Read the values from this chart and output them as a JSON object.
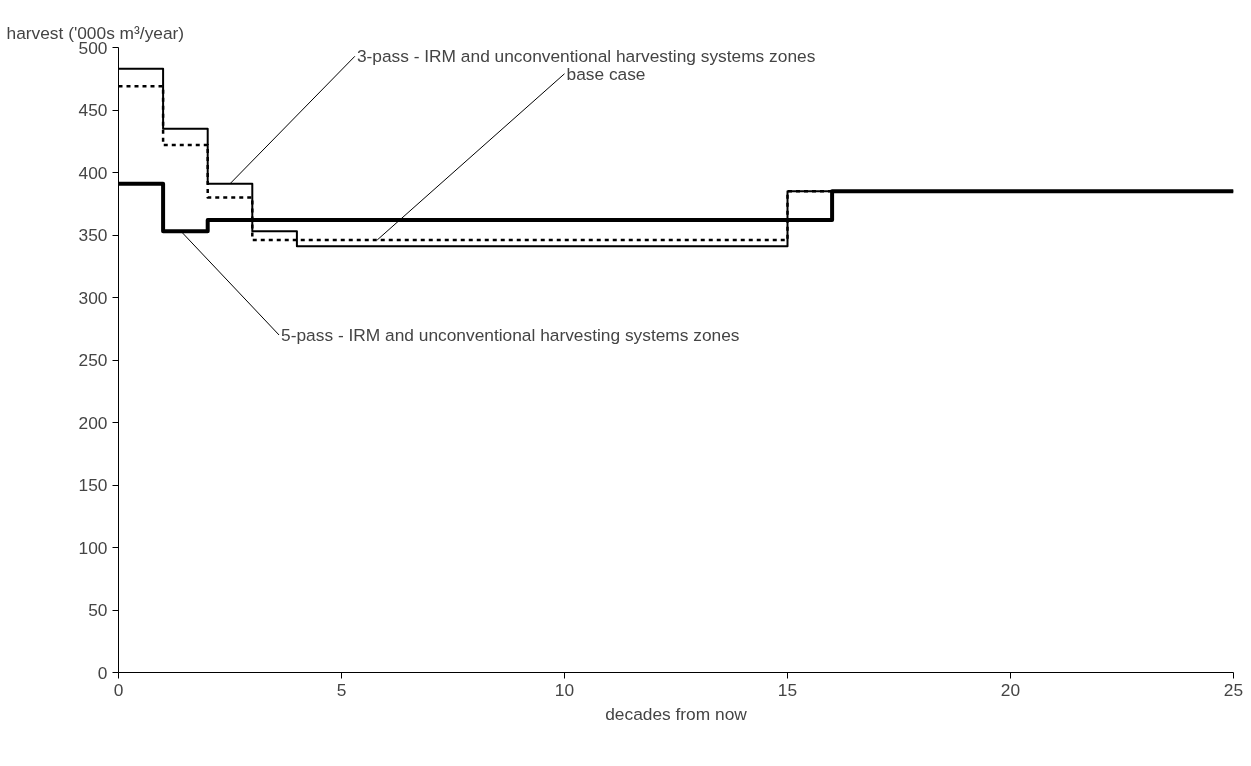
{
  "chart_data": {
    "type": "step",
    "xlabel": "decades from now",
    "ylabel": "harvest ('000s m³/year)",
    "xlim": [
      0,
      25
    ],
    "xticks": [
      0,
      5,
      10,
      15,
      20,
      25
    ],
    "ylim": [
      0,
      500
    ],
    "yticks": [
      0,
      50,
      100,
      150,
      200,
      250,
      300,
      350,
      400,
      450,
      500
    ],
    "grid": false,
    "legend": false,
    "series": [
      {
        "name": "3-pass - IRM and unconventional harvesting systems zones",
        "color": "#000000",
        "line_style": "solid",
        "x": [
          0,
          1,
          2,
          3,
          4,
          15,
          25
        ],
        "values": [
          483,
          435,
          391,
          353,
          341,
          385,
          385
        ]
      },
      {
        "name": "base case",
        "color": "#000000",
        "line_style": "dashed",
        "x": [
          0,
          1,
          2,
          3,
          15,
          25
        ],
        "values": [
          469,
          422,
          380,
          346,
          385,
          385
        ]
      },
      {
        "name": "5-pass - IRM and unconventional harvesting systems zones",
        "color": "#000000",
        "line_style": "solid",
        "x": [
          0,
          1,
          2,
          16,
          25
        ],
        "values": [
          391,
          353,
          362,
          385,
          385
        ]
      }
    ]
  }
}
